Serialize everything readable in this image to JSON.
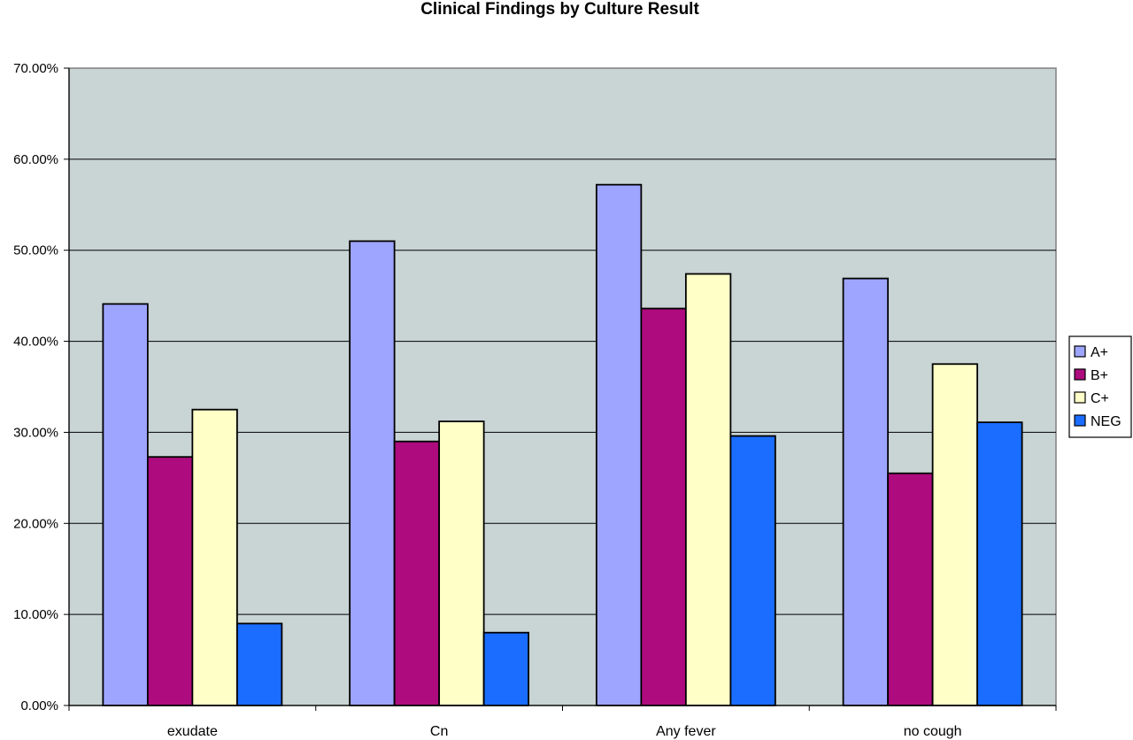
{
  "chart_data": {
    "type": "bar",
    "title": "Clinical Findings by Culture Result",
    "xlabel": "",
    "ylabel": "",
    "categories": [
      "exudate",
      "Cn",
      "Any fever",
      "no cough"
    ],
    "ylim": [
      0,
      0.7
    ],
    "yticks": [
      0,
      0.1,
      0.2,
      0.3,
      0.4,
      0.5,
      0.6,
      0.7
    ],
    "ytick_labels": [
      "0.00%",
      "10.00%",
      "20.00%",
      "30.00%",
      "40.00%",
      "50.00%",
      "60.00%",
      "70.00%"
    ],
    "grid": "horizontal",
    "legend_position": "right",
    "plot_background": "#c9d4d4",
    "series": [
      {
        "name": "A+",
        "color": "#9ea5ff",
        "values": [
          0.441,
          0.51,
          0.572,
          0.469
        ]
      },
      {
        "name": "B+",
        "color": "#ad0b7e",
        "values": [
          0.273,
          0.29,
          0.436,
          0.255
        ]
      },
      {
        "name": "C+",
        "color": "#ffffc8",
        "values": [
          0.325,
          0.312,
          0.474,
          0.375
        ]
      },
      {
        "name": "NEG",
        "color": "#1a6dff",
        "values": [
          0.09,
          0.08,
          0.296,
          0.311
        ]
      }
    ]
  }
}
